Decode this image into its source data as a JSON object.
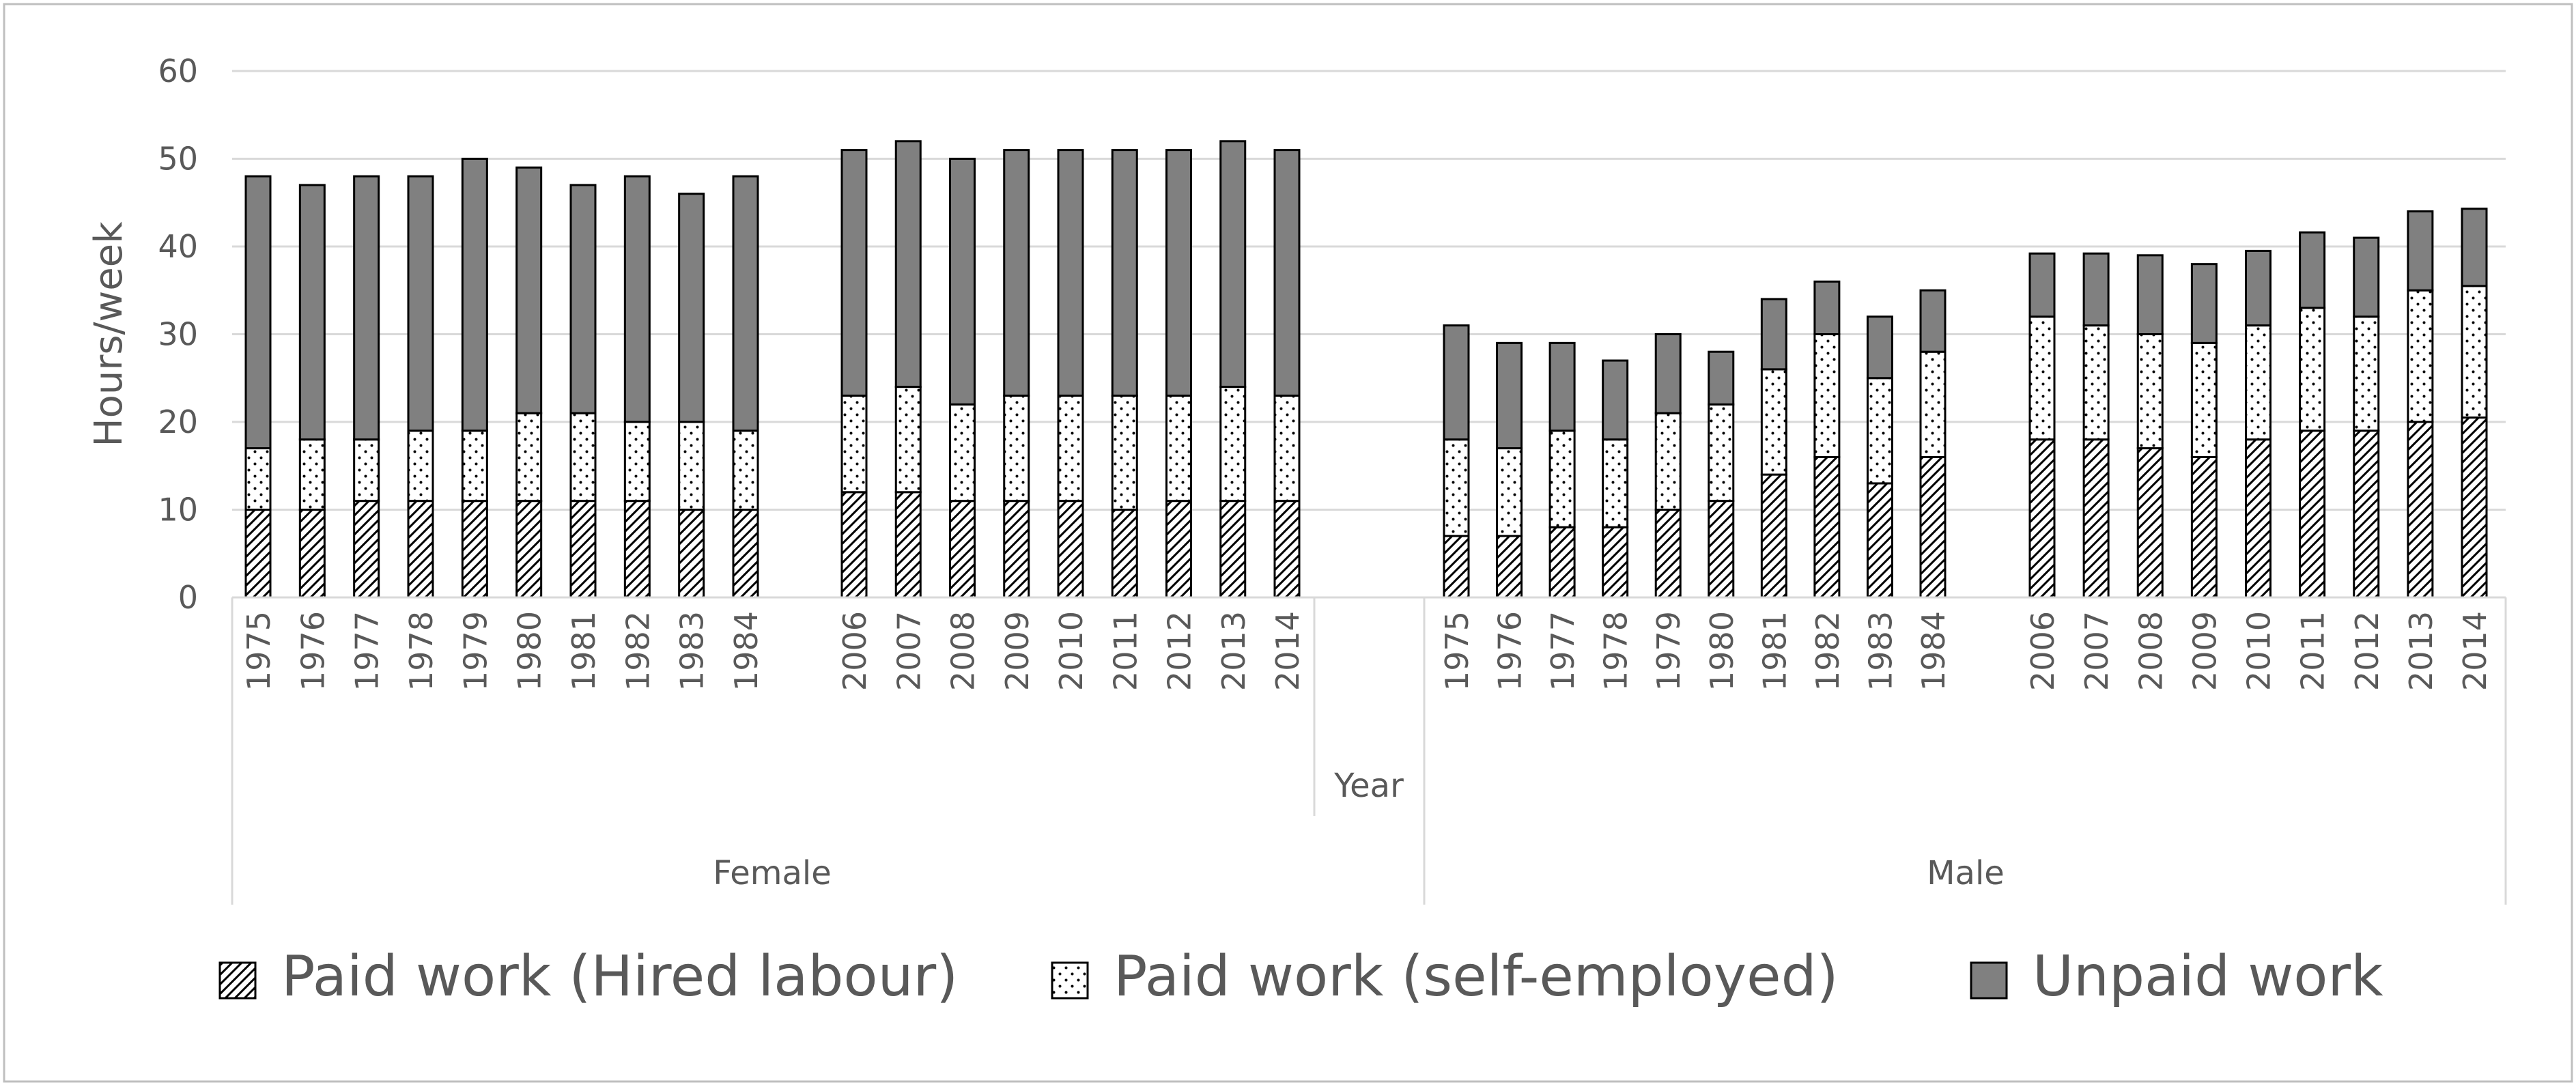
{
  "chart_data": {
    "type": "bar",
    "stacked": true,
    "ylabel": "Hours/week",
    "ylim": [
      0,
      60
    ],
    "yticks": [
      0,
      10,
      20,
      30,
      40,
      50,
      60
    ],
    "grid": true,
    "legend_position": "bottom",
    "group_axis_label": "Year",
    "groups": [
      {
        "name": "Female",
        "periods": [
          {
            "categories": [
              "1975",
              "1976",
              "1977",
              "1978",
              "1979",
              "1980",
              "1981",
              "1982",
              "1983",
              "1984"
            ],
            "series": [
              {
                "name": "Paid work (Hired labour)",
                "values": [
                  10,
                  10,
                  11,
                  11,
                  11,
                  11,
                  11,
                  11,
                  10,
                  10
                ]
              },
              {
                "name": "Paid work (self-employed)",
                "values": [
                  7,
                  8,
                  7,
                  8,
                  8,
                  10,
                  10,
                  9,
                  10,
                  9
                ]
              },
              {
                "name": "Unpaid work",
                "values": [
                  31,
                  29,
                  30,
                  29,
                  31,
                  28,
                  26,
                  28,
                  26,
                  29
                ]
              }
            ]
          },
          {
            "categories": [
              "2006",
              "2007",
              "2008",
              "2009",
              "2010",
              "2011",
              "2012",
              "2013",
              "2014"
            ],
            "series": [
              {
                "name": "Paid work (Hired labour)",
                "values": [
                  12,
                  12,
                  11,
                  11,
                  11,
                  10,
                  11,
                  11,
                  11
                ]
              },
              {
                "name": "Paid work (self-employed)",
                "values": [
                  11,
                  12,
                  11,
                  12,
                  12,
                  13,
                  12,
                  13,
                  12
                ]
              },
              {
                "name": "Unpaid work",
                "values": [
                  28,
                  28,
                  28,
                  28,
                  28,
                  28,
                  28,
                  28,
                  28
                ]
              }
            ]
          }
        ]
      },
      {
        "name": "Male",
        "periods": [
          {
            "categories": [
              "1975",
              "1976",
              "1977",
              "1978",
              "1979",
              "1980",
              "1981",
              "1982",
              "1983",
              "1984"
            ],
            "series": [
              {
                "name": "Paid work (Hired labour)",
                "values": [
                  7,
                  7,
                  8,
                  8,
                  10,
                  11,
                  14,
                  16,
                  13,
                  16
                ]
              },
              {
                "name": "Paid work (self-employed)",
                "values": [
                  11,
                  10,
                  11,
                  10,
                  11,
                  11,
                  12,
                  14,
                  12,
                  12
                ]
              },
              {
                "name": "Unpaid work",
                "values": [
                  13,
                  12,
                  10,
                  9,
                  9,
                  6,
                  8,
                  6,
                  7,
                  7
                ]
              }
            ]
          },
          {
            "categories": [
              "2006",
              "2007",
              "2008",
              "2009",
              "2010",
              "2011",
              "2012",
              "2013",
              "2014"
            ],
            "series": [
              {
                "name": "Paid work (Hired labour)",
                "values": [
                  18,
                  18,
                  17,
                  16,
                  18,
                  19,
                  19,
                  20,
                  20.5
                ]
              },
              {
                "name": "Paid work (self-employed)",
                "values": [
                  14,
                  13,
                  13,
                  13,
                  13,
                  14,
                  13,
                  15,
                  15
                ]
              },
              {
                "name": "Unpaid work",
                "values": [
                  7.2,
                  8.2,
                  9,
                  9,
                  8.5,
                  8.6,
                  9,
                  9,
                  8.8
                ]
              }
            ]
          }
        ]
      }
    ],
    "legend": [
      {
        "name": "Paid work (Hired labour)",
        "pattern": "hatch"
      },
      {
        "name": "Paid work (self-employed)",
        "pattern": "dots"
      },
      {
        "name": "Unpaid work",
        "pattern": "solid"
      }
    ],
    "colors": {
      "unpaid": "#808080",
      "bar_outline": "#000000",
      "hatch": "#000000",
      "grid": "#d9d9d9",
      "text": "#595959",
      "border": "#bfbfbf"
    }
  }
}
